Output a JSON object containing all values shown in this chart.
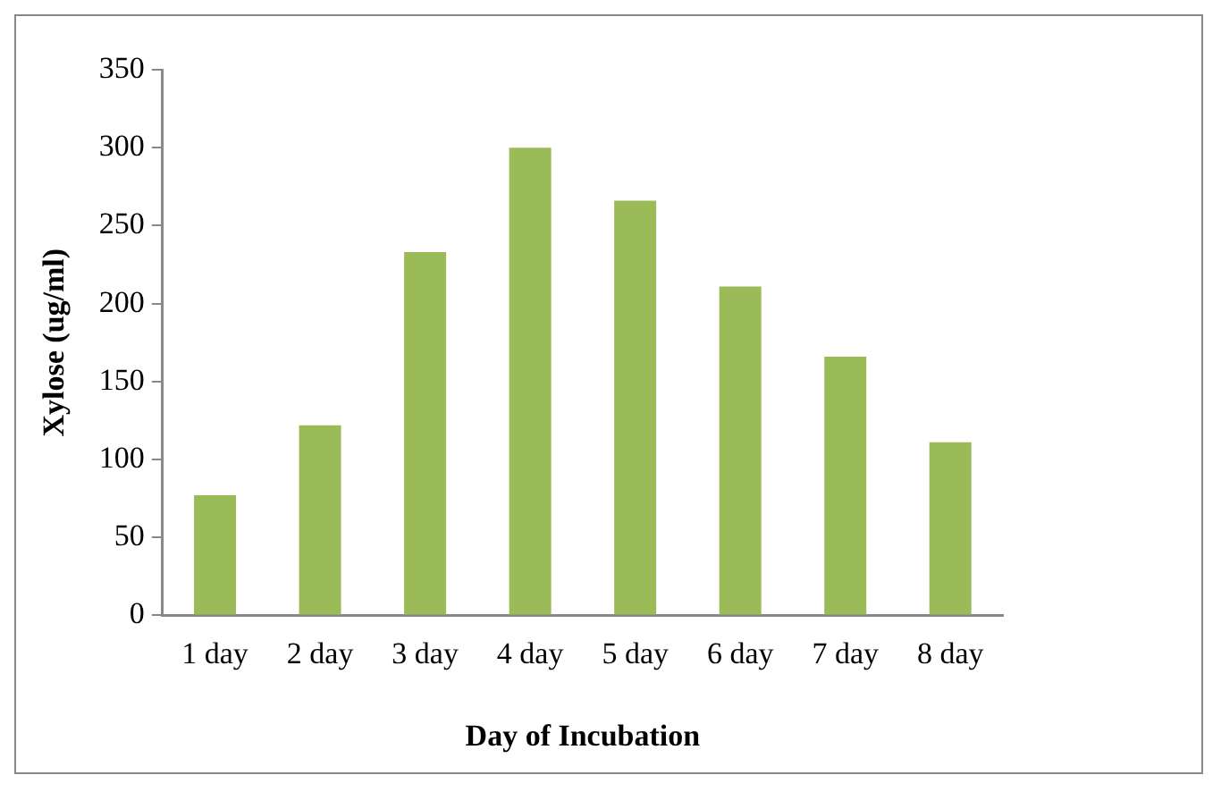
{
  "chart_data": {
    "type": "bar",
    "xlabel": "Day of Incubation",
    "ylabel": "Xylose (ug/ml)",
    "categories": [
      "1 day",
      "2 day",
      "3 day",
      "4 day",
      "5 day",
      "6 day",
      "7 day",
      "8 day"
    ],
    "values": [
      77,
      122,
      233,
      300,
      266,
      211,
      166,
      111
    ],
    "color": "#9bbb59",
    "ylim": [
      0,
      350
    ],
    "yticks": [
      0,
      50,
      100,
      150,
      200,
      250,
      300,
      350
    ],
    "grid": false
  }
}
